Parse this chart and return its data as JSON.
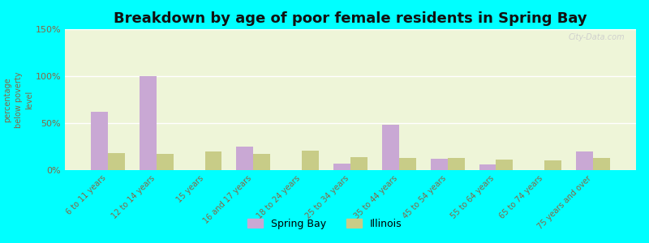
{
  "title": "Breakdown by age of poor female residents in Spring Bay",
  "ylabel": "percentage\nbelow poverty\nlevel",
  "categories": [
    "6 to 11 years",
    "12 to 14 years",
    "15 years",
    "16 and 17 years",
    "18 to 24 years",
    "25 to 34 years",
    "35 to 44 years",
    "45 to 54 years",
    "55 to 64 years",
    "65 to 74 years",
    "75 years and over"
  ],
  "spring_bay": [
    62,
    100,
    0,
    25,
    0,
    7,
    48,
    12,
    6,
    0,
    20
  ],
  "illinois": [
    18,
    17,
    20,
    17,
    21,
    14,
    13,
    13,
    11,
    10,
    13
  ],
  "spring_bay_color": "#c9a8d4",
  "illinois_color": "#c8cc87",
  "background_color": "#00ffff",
  "plot_bg_color": "#eef5d8",
  "ylim": [
    0,
    150
  ],
  "yticks": [
    0,
    50,
    100,
    150
  ],
  "ytick_labels": [
    "0%",
    "50%",
    "100%",
    "150%"
  ],
  "bar_width": 0.35,
  "title_fontsize": 13,
  "axis_label_color": "#886644",
  "tick_label_color": "#886644",
  "legend_labels": [
    "Spring Bay",
    "Illinois"
  ],
  "watermark": "City-Data.com"
}
